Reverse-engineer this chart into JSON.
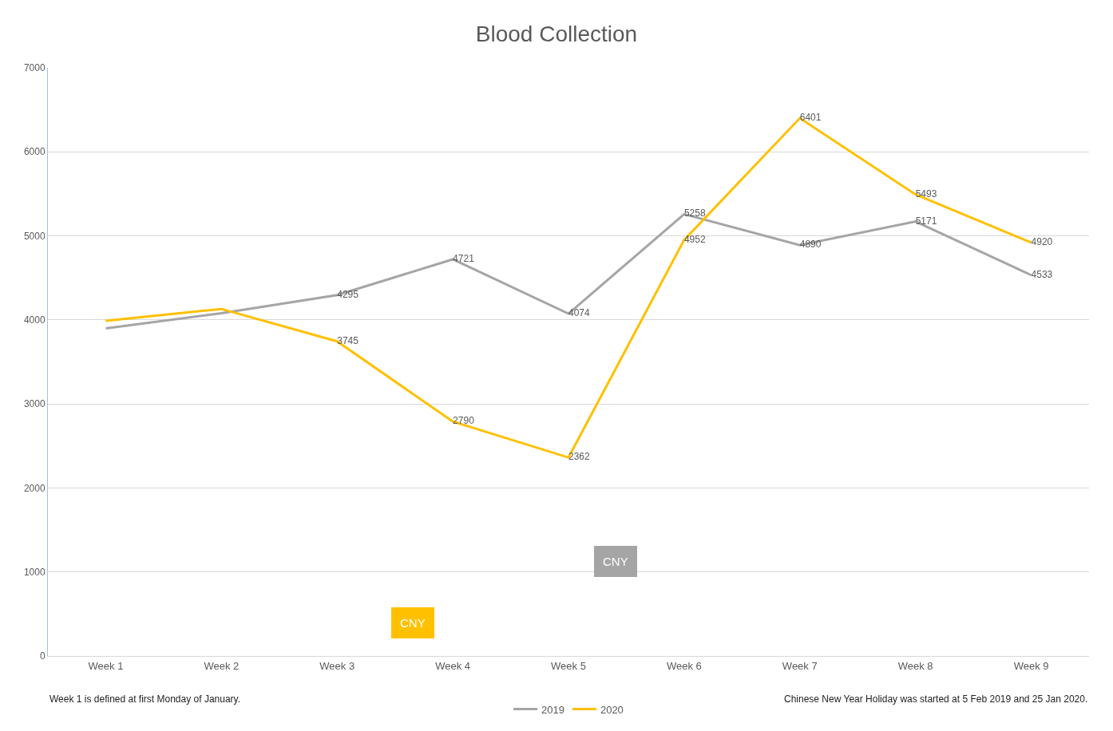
{
  "chart_data": {
    "type": "line",
    "title": "Blood Collection",
    "categories": [
      "Week 1",
      "Week 2",
      "Week 3",
      "Week 4",
      "Week 5",
      "Week 6",
      "Week 7",
      "Week 8",
      "Week 9"
    ],
    "series": [
      {
        "name": "2019",
        "color": "#a5a5a5",
        "values": [
          3900,
          4080,
          4295,
          4721,
          4074,
          5258,
          4890,
          5171,
          4533
        ],
        "value_labels": [
          null,
          null,
          "4295",
          "4721",
          "4074",
          "5258",
          "4890",
          "5171",
          "4533"
        ]
      },
      {
        "name": "2020",
        "color": "#ffc000",
        "values": [
          3990,
          4130,
          3745,
          2790,
          2362,
          4952,
          6401,
          5493,
          4920
        ],
        "value_labels": [
          null,
          null,
          "3745",
          "2790",
          "2362",
          "4952",
          "6401",
          "5493",
          "4920"
        ]
      }
    ],
    "ylim": [
      0,
      7000
    ],
    "yticks": [
      0,
      1000,
      2000,
      3000,
      4000,
      5000,
      6000,
      7000
    ],
    "grid": "y",
    "legend": "bottom",
    "marker": "none",
    "line_style": "solid",
    "annotations": [
      "CNY",
      "CNY",
      "Week 1 is defined at first Monday of January.",
      "Chinese New Year Holiday was started at 5 Feb 2019 and 25 Jan 2020."
    ]
  }
}
